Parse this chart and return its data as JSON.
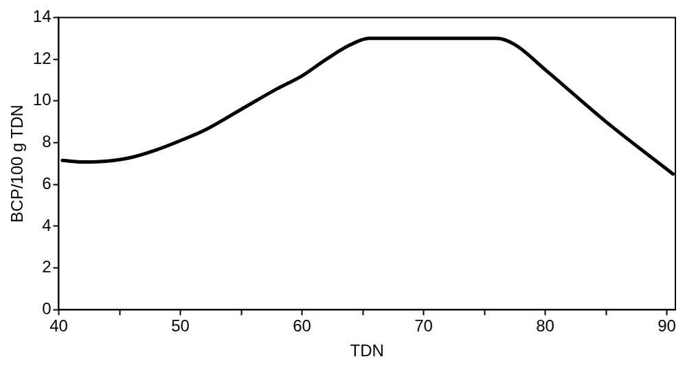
{
  "chart_data": {
    "type": "line",
    "xlabel": "TDN",
    "ylabel": "BCP/100 g TDN",
    "x": [
      40.3,
      42,
      44,
      46,
      48,
      50,
      52,
      55,
      58,
      60,
      62,
      64,
      65.5,
      70,
      76,
      77.5,
      80,
      85,
      90.5
    ],
    "series": [
      {
        "color": "#000000",
        "values": [
          7.15,
          7.08,
          7.12,
          7.3,
          7.65,
          8.1,
          8.6,
          9.6,
          10.6,
          11.2,
          12.0,
          12.7,
          13.0,
          13.0,
          13.0,
          12.7,
          11.5,
          9.0,
          6.5
        ]
      }
    ],
    "xlim": [
      40,
      90.7
    ],
    "xticks": [
      40,
      {
        "value": 45,
        "label": null
      },
      50,
      {
        "value": 55,
        "label": null
      },
      60,
      {
        "value": 65,
        "label": null
      },
      70,
      {
        "value": 75,
        "label": null
      },
      80,
      {
        "value": 85,
        "label": null
      },
      90
    ],
    "ylim": [
      0,
      14
    ],
    "yticks": [
      0,
      2,
      4,
      6,
      8,
      10,
      12,
      14
    ],
    "grid": false,
    "legend": false,
    "marker": "none",
    "line_style": "solid"
  }
}
